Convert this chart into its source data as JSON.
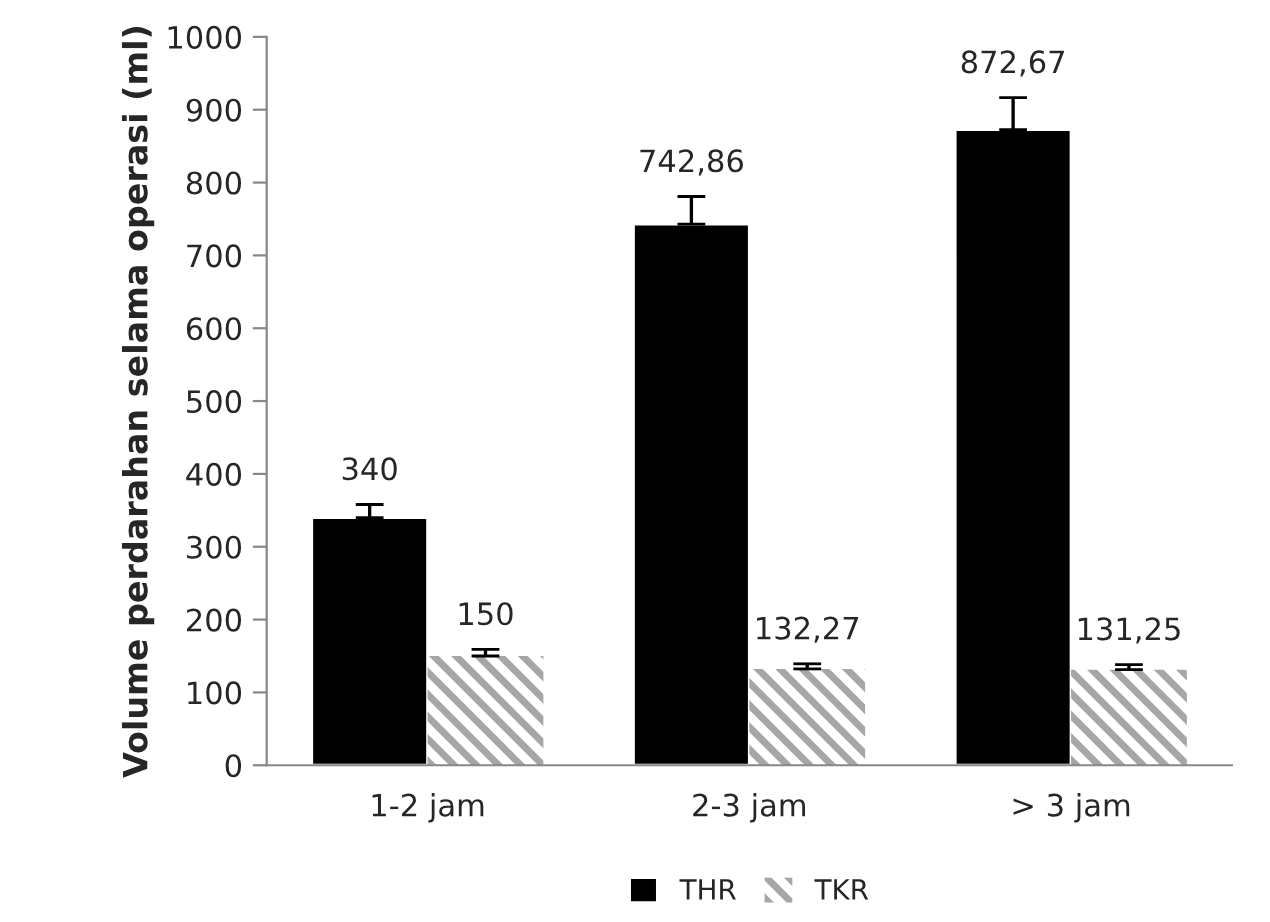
{
  "chart_data": {
    "type": "bar",
    "ylabel": "Volume perdarahan selama operasi (ml)",
    "categories": [
      "1-2 jam",
      "2-3 jam",
      "> 3 jam"
    ],
    "series": [
      {
        "name": "THR",
        "color": "#000000",
        "values": [
          340,
          742.86,
          872.67
        ],
        "errors": [
          18,
          38,
          44
        ],
        "value_labels": [
          "340",
          "742,86",
          "872,67"
        ]
      },
      {
        "name": "TKR",
        "color": "#a6a6a6",
        "values": [
          150,
          132.27,
          131.25
        ],
        "errors": [
          9,
          7,
          7
        ],
        "value_labels": [
          "150",
          "132,27",
          "131,25"
        ]
      }
    ],
    "ylim": [
      0,
      1000
    ],
    "yticks": [
      0,
      100,
      200,
      300,
      400,
      500,
      600,
      700,
      800,
      900,
      1000
    ],
    "grid": false,
    "legend": "bottom"
  }
}
